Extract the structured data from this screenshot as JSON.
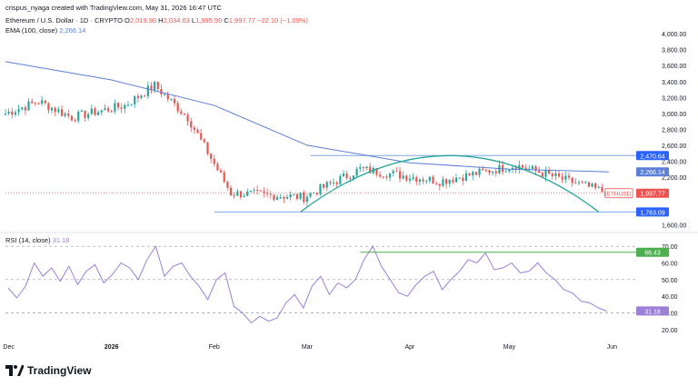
{
  "header": {
    "created_by": "crispus_nyaga created with TradingView.com, May 31, 2026 16:47 UTC",
    "symbol_line": "Ethereum / U.S. Dollar · 1D · CRYPTO",
    "ohlc": {
      "o_label": "O",
      "o": "2,019.90",
      "h_label": "H",
      "h": "2,034.63",
      "l_label": "L",
      "l": "1,995.90",
      "c_label": "C",
      "c": "1,997.77",
      "change": "−22.10 (−1.09%)"
    },
    "ema_label": "EMA (100, close)",
    "ema_value": "2,266.14"
  },
  "rsi_header": {
    "label": "RSI (14, close)",
    "value": "31.18"
  },
  "footer": {
    "logo_text": "TradingView"
  },
  "colors": {
    "up": "#26a69a",
    "down": "#ef5350",
    "ema": "#5b7fd6",
    "rsi": "#9c7fd6",
    "arc": "#26a69a",
    "level": "#7ea7e8",
    "rsi_line": "#4caf50",
    "price_badge": "#ef5350",
    "ema_badge": "#5b7fd6",
    "level_badge": "#2962ff",
    "rsi_badge": "#9c7fd6"
  },
  "chart_data": [
    {
      "type": "candlestick",
      "title": "Ethereum / U.S. Dollar · 1D · CRYPTO",
      "y_ticks": [
        "4,000.00",
        "3,800.00",
        "3,600.00",
        "3,400.00",
        "3,200.00",
        "3,000.00",
        "2,800.00",
        "2,600.00",
        "2,400.00",
        "2,200.00",
        "1,600.00"
      ],
      "y_tick_values": [
        4000,
        3800,
        3600,
        3400,
        3200,
        3000,
        2800,
        2600,
        2400,
        2200,
        1600
      ],
      "ylim": [
        1550,
        4150
      ],
      "x_ticks": [
        "Dec",
        "2026",
        "Feb",
        "Mar",
        "Apr",
        "May",
        "Jun"
      ],
      "x_tick_dates": [
        "2025-12-01",
        "2026-01-01",
        "2026-02-01",
        "2026-03-01",
        "2026-04-01",
        "2026-05-01",
        "2026-06-01"
      ],
      "xlim": [
        "2025-11-30",
        "2026-06-05"
      ],
      "ohlc_segments": [
        {
          "from": "2025-11-30",
          "to": "2025-12-10",
          "start": 3000,
          "end": 3150
        },
        {
          "from": "2025-12-10",
          "to": "2025-12-20",
          "start": 3150,
          "end": 2950
        },
        {
          "from": "2025-12-20",
          "to": "2026-01-05",
          "start": 2950,
          "end": 3100
        },
        {
          "from": "2026-01-05",
          "to": "2026-01-14",
          "start": 3100,
          "end": 3350
        },
        {
          "from": "2026-01-14",
          "to": "2026-01-24",
          "start": 3350,
          "end": 2950
        },
        {
          "from": "2026-01-24",
          "to": "2026-02-06",
          "start": 2950,
          "end": 2000
        },
        {
          "from": "2026-02-06",
          "to": "2026-02-28",
          "start": 2000,
          "end": 1950
        },
        {
          "from": "2026-02-28",
          "to": "2026-03-17",
          "start": 1950,
          "end": 2300
        },
        {
          "from": "2026-03-17",
          "to": "2026-04-10",
          "start": 2300,
          "end": 2150
        },
        {
          "from": "2026-04-10",
          "to": "2026-05-03",
          "start": 2150,
          "end": 2350
        },
        {
          "from": "2026-05-03",
          "to": "2026-05-31",
          "start": 2350,
          "end": 1998
        }
      ],
      "ema_100": [
        {
          "x": "2025-11-30",
          "y": 3650
        },
        {
          "x": "2026-01-01",
          "y": 3420
        },
        {
          "x": "2026-02-01",
          "y": 3100
        },
        {
          "x": "2026-03-01",
          "y": 2600
        },
        {
          "x": "2026-04-01",
          "y": 2380
        },
        {
          "x": "2026-05-01",
          "y": 2300
        },
        {
          "x": "2026-05-31",
          "y": 2266
        }
      ],
      "levels": [
        {
          "label": "2,470.64",
          "value": 2470.64,
          "from": "2026-03-02",
          "to": "2026-06-01"
        },
        {
          "label": "1,763.09",
          "value": 1763.09,
          "from": "2026-02-01",
          "to": "2026-06-01"
        }
      ],
      "arc": {
        "from": "2026-02-27",
        "peak": "2026-04-13",
        "to": "2026-05-28",
        "peak_value": 2470,
        "base_value": 1763
      },
      "badges": [
        {
          "label": "2,266.14",
          "value": 2266.14,
          "kind": "ema"
        },
        {
          "label": "1,997.77",
          "value": 1997.77,
          "kind": "price"
        }
      ],
      "symbol_badge": "ETHUSD"
    },
    {
      "type": "line",
      "title": "RSI (14, close)",
      "y_ticks": [
        "70.00",
        "60.00",
        "50.00",
        "40.00",
        "30.00",
        "20.00"
      ],
      "y_tick_values": [
        70,
        60,
        50,
        40,
        30,
        20
      ],
      "ylim": [
        15,
        75
      ],
      "rsi_values": [
        45,
        39,
        46,
        60,
        52,
        57,
        49,
        58,
        47,
        55,
        59,
        48,
        53,
        60,
        57,
        50,
        62,
        70,
        52,
        58,
        60,
        52,
        46,
        38,
        50,
        54,
        34,
        30,
        24,
        28,
        25,
        27,
        36,
        41,
        33,
        46,
        52,
        41,
        48,
        45,
        50,
        62,
        70,
        58,
        50,
        42,
        40,
        47,
        52,
        55,
        44,
        50,
        55,
        62,
        60,
        66,
        56,
        57,
        60,
        54,
        55,
        60,
        54,
        50,
        44,
        42,
        37,
        36,
        33,
        31
      ],
      "levels": [
        {
          "label": "66.43",
          "value": 66.43,
          "from": "2026-03-17",
          "to": "2026-06-01"
        }
      ],
      "badges": [
        {
          "label": "66.43",
          "value": 66.43,
          "kind": "rsi_level"
        },
        {
          "label": "31.18",
          "value": 31.18,
          "kind": "rsi"
        }
      ]
    }
  ]
}
